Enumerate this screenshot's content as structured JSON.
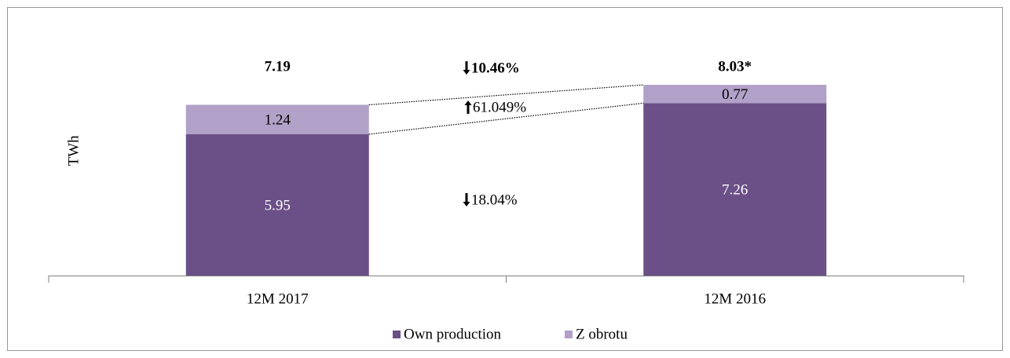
{
  "chart_data": {
    "type": "stacked_bar",
    "y_label": "TWh",
    "categories": [
      "12M 2017",
      "12M 2016"
    ],
    "series": [
      {
        "name": "Own production",
        "color": "#6b5088",
        "values": [
          5.95,
          7.26
        ]
      },
      {
        "name": "Z obrotu",
        "color": "#b1a0c7",
        "values": [
          1.24,
          0.77
        ]
      }
    ],
    "totals": [
      7.19,
      8.03
    ],
    "total_labels": [
      "7.19",
      "8.03*"
    ],
    "changes": [
      {
        "label": "10.46%",
        "direction": "down"
      },
      {
        "label": "61.049%",
        "direction": "up"
      },
      {
        "label": "18.04%",
        "direction": "down"
      }
    ],
    "ylim": [
      0,
      10
    ],
    "legend": "bottom"
  }
}
